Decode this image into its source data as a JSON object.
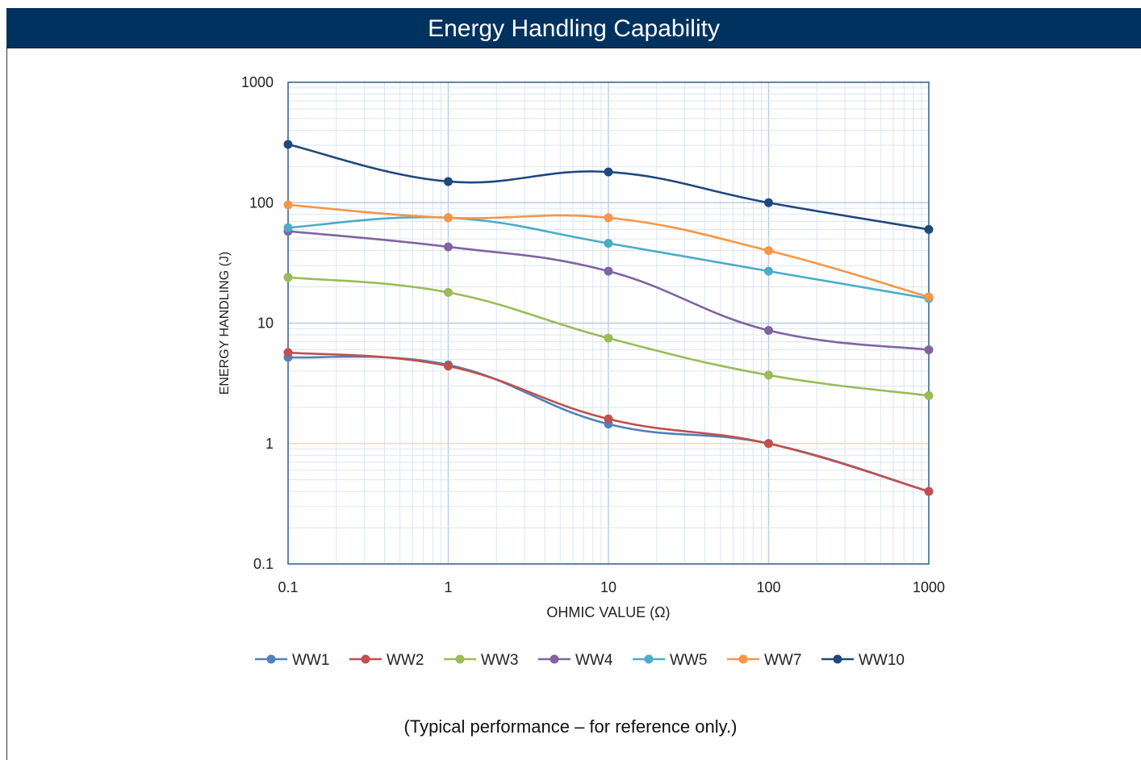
{
  "header": {
    "title": "Energy Handling Capability"
  },
  "footnote": "(Typical performance – for reference only.)",
  "chart_data": {
    "type": "line",
    "xscale": "log",
    "yscale": "log",
    "xlim": [
      0.1,
      1000
    ],
    "ylim": [
      0.1,
      1000
    ],
    "xlabel": "OHMIC VALUE (Ω)",
    "ylabel": "ENERGY HANDLING (J)",
    "xticks": [
      "0.1",
      "1",
      "10",
      "100",
      "1000"
    ],
    "yticks": [
      "0.1",
      "1",
      "10",
      "100",
      "1000"
    ],
    "grid": true,
    "legend_position": "bottom",
    "x": [
      0.1,
      1,
      10,
      100,
      1000
    ],
    "series": [
      {
        "name": "WW1",
        "color": "#4f81bd",
        "values": [
          5.2,
          4.5,
          1.45,
          1.0,
          0.4
        ]
      },
      {
        "name": "WW2",
        "color": "#c0504d",
        "values": [
          5.7,
          4.4,
          1.6,
          1.0,
          0.4
        ]
      },
      {
        "name": "WW3",
        "color": "#9bbb59",
        "values": [
          24,
          18,
          7.5,
          3.7,
          2.5
        ]
      },
      {
        "name": "WW4",
        "color": "#8064a2",
        "values": [
          58,
          43,
          27,
          8.7,
          6.0
        ]
      },
      {
        "name": "WW5",
        "color": "#4bacc6",
        "values": [
          62,
          75,
          46,
          27,
          16
        ]
      },
      {
        "name": "WW7",
        "color": "#f79646",
        "values": [
          96,
          75,
          75,
          40,
          16.5
        ]
      },
      {
        "name": "WW10",
        "color": "#1f497d",
        "values": [
          305,
          150,
          180,
          100,
          60
        ]
      }
    ]
  }
}
